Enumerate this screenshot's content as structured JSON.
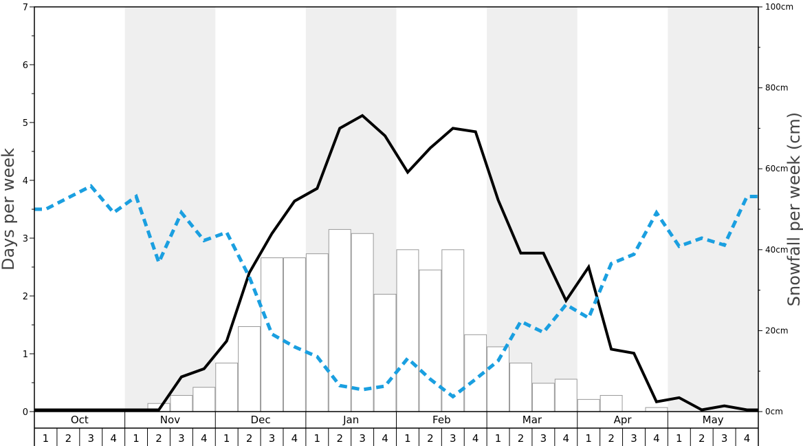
{
  "chart_data": {
    "type": "bar",
    "ylabel": "Days per week",
    "y2label": "Snowfall per week (cm)",
    "ylim": [
      0,
      7
    ],
    "y_ticks": [
      "0",
      "1",
      "2",
      "3",
      "4",
      "5",
      "6",
      "7"
    ],
    "y2lim": [
      0,
      100
    ],
    "y2_ticks": [
      "0cm",
      "20cm",
      "40cm",
      "60cm",
      "80cm",
      "100cm"
    ],
    "months": [
      "Oct",
      "Nov",
      "Dec",
      "Jan",
      "Feb",
      "Mar",
      "Apr",
      "May"
    ],
    "weeks": [
      "1",
      "2",
      "3",
      "4"
    ],
    "colors": {
      "bars_fill": "#ffffff",
      "bars_stroke": "#999999",
      "line_solid": "#000000",
      "line_dashed": "#1a9fe0",
      "shade": "#efefef"
    },
    "series": [
      {
        "kind": "bars",
        "axis": "right",
        "values": [
          0,
          0,
          0,
          0,
          0,
          2,
          4,
          6,
          12,
          21,
          38,
          38,
          39,
          45,
          44,
          29,
          40,
          35,
          40,
          19,
          16,
          12,
          7,
          8,
          3,
          4,
          0,
          1,
          0,
          0,
          0,
          0
        ]
      },
      {
        "kind": "line-solid",
        "axis": "left",
        "values": [
          0.03,
          0.03,
          0.03,
          0.03,
          0.03,
          0.03,
          0.6,
          0.74,
          1.22,
          2.4,
          3.08,
          3.64,
          3.86,
          4.9,
          5.12,
          4.77,
          4.14,
          4.56,
          4.9,
          4.84,
          3.66,
          2.74,
          2.74,
          1.92,
          2.5,
          1.08,
          1.01,
          0.17,
          0.24,
          0.03,
          0.1,
          0.03
        ]
      },
      {
        "kind": "line-dashed",
        "axis": "left",
        "values": [
          3.5,
          3.7,
          3.9,
          3.44,
          3.72,
          2.58,
          3.44,
          2.96,
          3.1,
          2.33,
          1.34,
          1.12,
          0.95,
          0.45,
          0.38,
          0.44,
          0.92,
          0.56,
          0.26,
          0.56,
          0.88,
          1.56,
          1.37,
          1.85,
          1.62,
          2.56,
          2.72,
          3.44,
          2.86,
          3.0,
          2.88,
          3.72
        ]
      }
    ]
  }
}
